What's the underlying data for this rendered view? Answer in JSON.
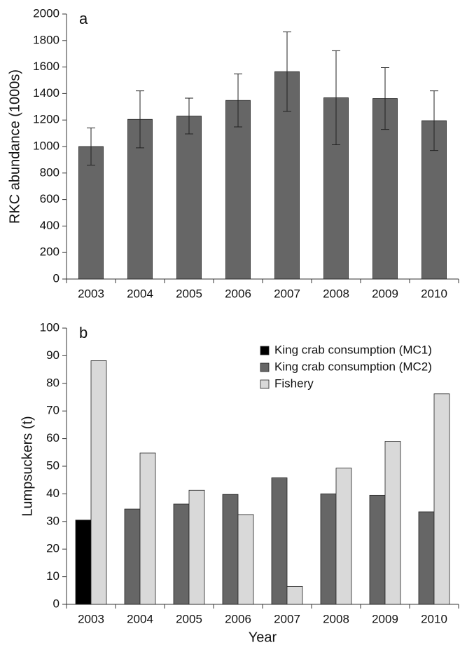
{
  "chart_data": [
    {
      "type": "bar",
      "panel_label": "a",
      "y_label": "RKC abundance (1000s)",
      "categories": [
        "2003",
        "2004",
        "2005",
        "2006",
        "2007",
        "2008",
        "2009",
        "2010"
      ],
      "values": [
        1000,
        1205,
        1230,
        1348,
        1565,
        1368,
        1362,
        1195
      ],
      "errors": [
        140,
        215,
        135,
        200,
        300,
        355,
        233,
        225
      ],
      "color": "#666666",
      "ylim": [
        0,
        2000
      ],
      "yticks": [
        0,
        200,
        400,
        600,
        800,
        1000,
        1200,
        1400,
        1600,
        1800,
        2000
      ]
    },
    {
      "type": "bar",
      "panel_label": "b",
      "y_label": "Lumpsuckers (t)",
      "x_label": "Year",
      "categories": [
        "2003",
        "2004",
        "2005",
        "2006",
        "2007",
        "2008",
        "2009",
        "2010"
      ],
      "series": [
        {
          "name": "King crab consumption (MC1)",
          "color": "#000000",
          "values": [
            30.5,
            null,
            null,
            null,
            null,
            null,
            null,
            null
          ]
        },
        {
          "name": "King crab consumption (MC2)",
          "color": "#666666",
          "values": [
            null,
            34.5,
            36.3,
            39.8,
            45.8,
            40,
            39.5,
            33.5
          ]
        },
        {
          "name": "Fishery",
          "color": "#d9d9d9",
          "values": [
            88.2,
            54.8,
            41.3,
            32.5,
            6.5,
            49.3,
            59,
            76.2
          ]
        }
      ],
      "legend": "top-right",
      "ylim": [
        0,
        100
      ],
      "yticks": [
        0,
        10,
        20,
        30,
        40,
        50,
        60,
        70,
        80,
        90,
        100
      ]
    }
  ]
}
